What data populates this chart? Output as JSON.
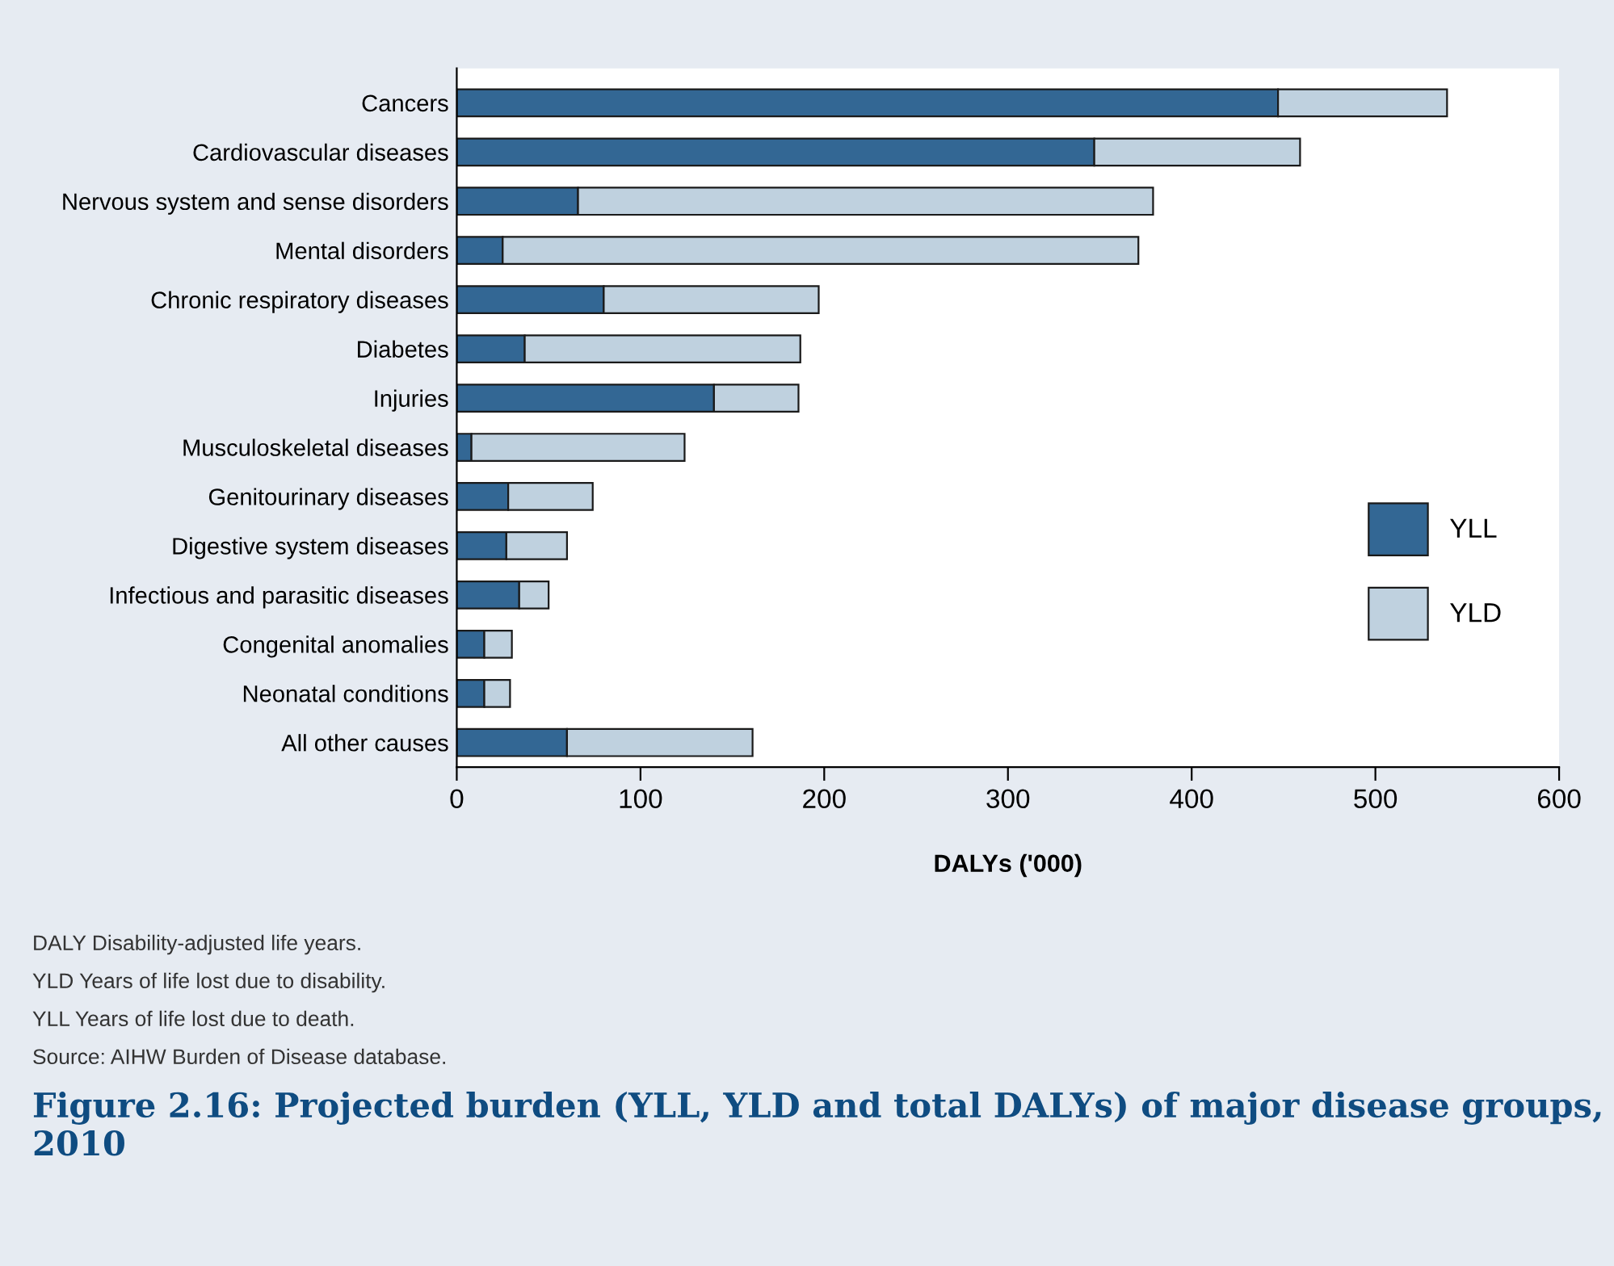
{
  "chart_data": {
    "type": "bar",
    "orientation": "horizontal",
    "stacked": true,
    "title": "Figure 2.16: Projected burden (YLL, YLD and total DALYs) of major disease groups, 2010",
    "xlabel": "DALYs ('000)",
    "categories": [
      "Cancers",
      "Cardiovascular diseases",
      "Nervous system and sense disorders",
      "Mental disorders",
      "Chronic respiratory diseases",
      "Diabetes",
      "Injuries",
      "Musculoskeletal diseases",
      "Genitourinary diseases",
      "Digestive system diseases",
      "Infectious and parasitic diseases",
      "Congenital anomalies",
      "Neonatal conditions",
      "All other causes"
    ],
    "series": [
      {
        "name": "YLL",
        "color": "#336794",
        "values": [
          447,
          347,
          66,
          25,
          80,
          37,
          140,
          8,
          28,
          27,
          34,
          15,
          15,
          60
        ]
      },
      {
        "name": "YLD",
        "color": "#bfd1df",
        "values": [
          92,
          112,
          313,
          346,
          117,
          150,
          46,
          116,
          46,
          33,
          16,
          15,
          14,
          101
        ]
      }
    ],
    "xlim": [
      0,
      600
    ],
    "xticks": [
      0,
      100,
      200,
      300,
      400,
      500,
      600
    ],
    "grid": false,
    "legend": "right",
    "annotations": [
      "DALY Disability-adjusted life years.",
      "YLD Years of life lost due to disability.",
      "YLL Years of life lost due to death.",
      "Source: AIHW Burden of Disease database."
    ]
  }
}
